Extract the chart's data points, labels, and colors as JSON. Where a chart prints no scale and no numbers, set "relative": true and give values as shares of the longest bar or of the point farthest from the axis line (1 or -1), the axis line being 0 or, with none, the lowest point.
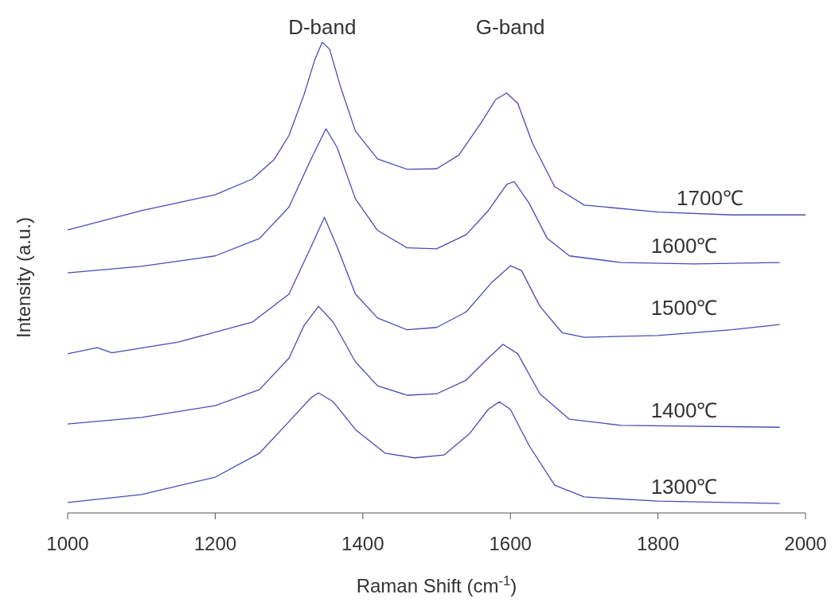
{
  "chart_data": {
    "type": "line",
    "relative": true,
    "xlabel": "Raman Shift (cm$^{-1}$)",
    "ylabel": "Intensity (a.u.)",
    "xlim": [
      1000,
      2000
    ],
    "xticks": [
      1000,
      1200,
      1400,
      1600,
      1800,
      2000
    ],
    "annotations": [
      "D-band",
      "G-band"
    ],
    "series": [
      {
        "name": "1700℃",
        "color": "#4a4ab8",
        "x": [
          1000,
          1100,
          1200,
          1250,
          1280,
          1300,
          1320,
          1335,
          1345,
          1355,
          1370,
          1390,
          1420,
          1460,
          1500,
          1530,
          1560,
          1580,
          1595,
          1610,
          1630,
          1660,
          1700,
          1800,
          1900,
          2000
        ],
        "values": [
          0.601,
          0.642,
          0.676,
          0.709,
          0.751,
          0.802,
          0.887,
          0.963,
          1.0,
          0.985,
          0.904,
          0.811,
          0.752,
          0.73,
          0.731,
          0.76,
          0.828,
          0.878,
          0.892,
          0.87,
          0.785,
          0.693,
          0.654,
          0.639,
          0.633,
          0.633
        ]
      },
      {
        "name": "1600℃",
        "color": "#4a4ab8",
        "x": [
          1000,
          1100,
          1200,
          1260,
          1300,
          1330,
          1350,
          1365,
          1390,
          1420,
          1460,
          1500,
          1540,
          1570,
          1595,
          1605,
          1625,
          1650,
          1680,
          1750,
          1850,
          1965
        ],
        "values": [
          0.51,
          0.524,
          0.546,
          0.583,
          0.65,
          0.752,
          0.816,
          0.777,
          0.667,
          0.6,
          0.563,
          0.561,
          0.591,
          0.642,
          0.698,
          0.704,
          0.659,
          0.583,
          0.546,
          0.532,
          0.529,
          0.532
        ]
      },
      {
        "name": "1500℃",
        "color": "#4a4ab8",
        "x": [
          1000,
          1040,
          1060,
          1150,
          1250,
          1300,
          1330,
          1348,
          1365,
          1390,
          1420,
          1460,
          1500,
          1540,
          1575,
          1600,
          1615,
          1640,
          1670,
          1700,
          1800,
          1900,
          1965
        ],
        "values": [
          0.338,
          0.351,
          0.34,
          0.363,
          0.405,
          0.465,
          0.566,
          0.628,
          0.566,
          0.465,
          0.414,
          0.389,
          0.394,
          0.427,
          0.49,
          0.525,
          0.515,
          0.439,
          0.383,
          0.373,
          0.377,
          0.389,
          0.4
        ]
      },
      {
        "name": "1400℃",
        "color": "#4a4ab8",
        "x": [
          1000,
          1100,
          1200,
          1260,
          1300,
          1320,
          1340,
          1360,
          1390,
          1420,
          1460,
          1500,
          1540,
          1570,
          1590,
          1610,
          1640,
          1680,
          1750,
          1965
        ],
        "values": [
          0.189,
          0.203,
          0.228,
          0.262,
          0.329,
          0.397,
          0.439,
          0.405,
          0.321,
          0.27,
          0.25,
          0.253,
          0.282,
          0.329,
          0.358,
          0.338,
          0.253,
          0.199,
          0.186,
          0.182
        ]
      },
      {
        "name": "1300℃",
        "color": "#4a4ab8",
        "x": [
          1000,
          1100,
          1200,
          1260,
          1300,
          1330,
          1340,
          1360,
          1390,
          1430,
          1470,
          1510,
          1545,
          1570,
          1585,
          1600,
          1625,
          1660,
          1700,
          1800,
          1965
        ],
        "values": [
          0.022,
          0.039,
          0.076,
          0.127,
          0.194,
          0.245,
          0.255,
          0.236,
          0.177,
          0.127,
          0.117,
          0.123,
          0.169,
          0.22,
          0.236,
          0.22,
          0.144,
          0.059,
          0.034,
          0.025,
          0.02
        ]
      }
    ]
  }
}
